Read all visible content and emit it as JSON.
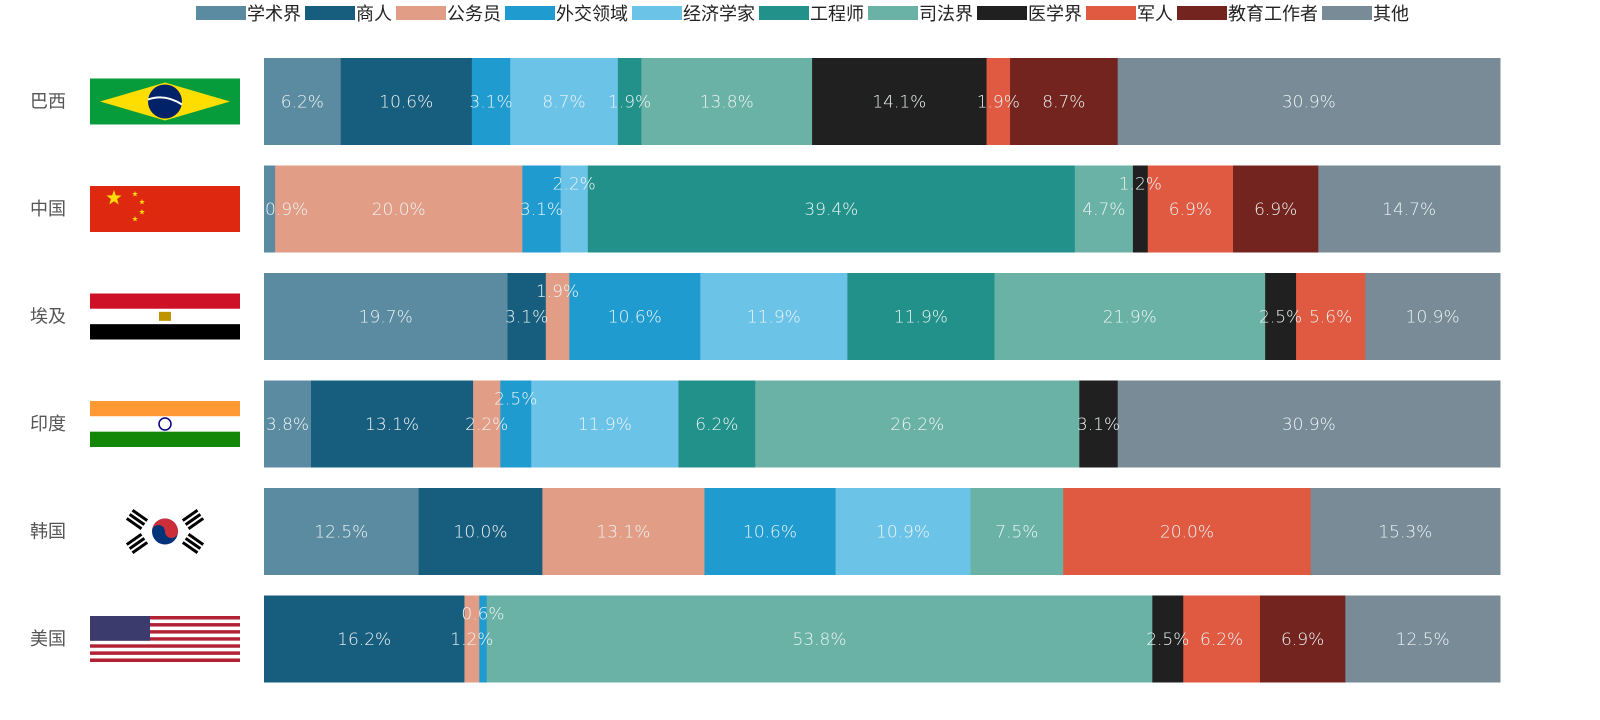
{
  "chart_data": {
    "type": "bar",
    "orientation": "horizontal",
    "stacked": "percent",
    "legend_position": "top",
    "grid": false,
    "categories": [
      "巴西",
      "中国",
      "埃及",
      "印度",
      "韩国",
      "美国"
    ],
    "flags": [
      "brazil-flag",
      "china-flag",
      "egypt-flag",
      "india-flag",
      "south-korea-flag",
      "usa-flag"
    ],
    "series": [
      {
        "name": "学术界",
        "color": "#5b8ba0",
        "values": [
          6.2,
          0.9,
          19.7,
          3.8,
          12.5,
          null
        ]
      },
      {
        "name": "商人",
        "color": "#175e7e",
        "values": [
          10.6,
          null,
          3.1,
          13.1,
          10.0,
          16.2
        ]
      },
      {
        "name": "公务员",
        "color": "#e29d86",
        "values": [
          null,
          20.0,
          1.9,
          2.2,
          13.1,
          1.2
        ]
      },
      {
        "name": "外交领域",
        "color": "#1f9bcf",
        "values": [
          3.1,
          3.1,
          10.6,
          2.5,
          10.6,
          0.6
        ]
      },
      {
        "name": "经济学家",
        "color": "#6cc3e8",
        "values": [
          8.7,
          2.2,
          11.9,
          11.9,
          10.9,
          null
        ]
      },
      {
        "name": "工程师",
        "color": "#22918a",
        "values": [
          1.9,
          39.4,
          11.9,
          6.2,
          null,
          null
        ]
      },
      {
        "name": "司法界",
        "color": "#6bb2a6",
        "values": [
          13.8,
          4.7,
          21.9,
          26.2,
          7.5,
          53.8
        ]
      },
      {
        "name": "医学界",
        "color": "#202020",
        "values": [
          14.1,
          1.2,
          2.5,
          3.1,
          null,
          2.5
        ]
      },
      {
        "name": "军人",
        "color": "#e05a42",
        "values": [
          1.9,
          6.9,
          5.6,
          null,
          20.0,
          6.2
        ]
      },
      {
        "name": "教育工作者",
        "color": "#73241f",
        "values": [
          8.7,
          6.9,
          null,
          null,
          null,
          6.9
        ]
      },
      {
        "name": "其他",
        "color": "#788b96",
        "values": [
          30.9,
          14.7,
          10.9,
          30.9,
          15.3,
          12.5
        ]
      }
    ]
  }
}
